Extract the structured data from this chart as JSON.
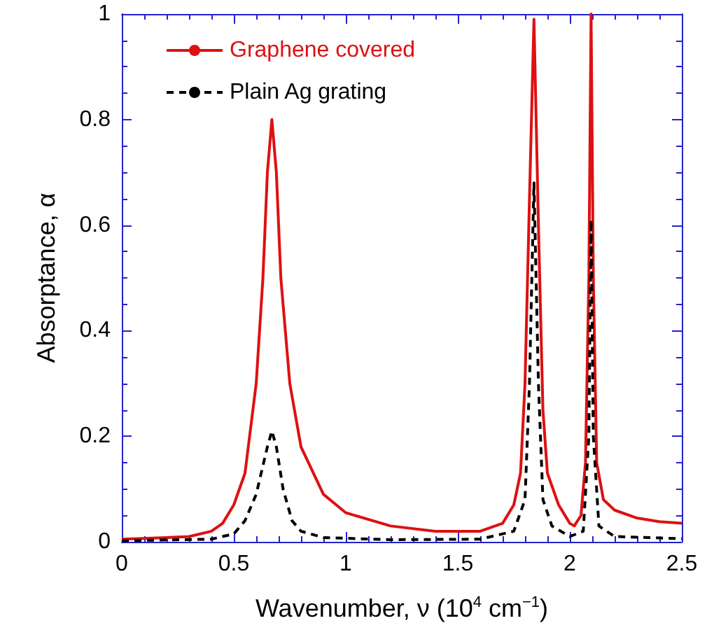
{
  "chart_data": {
    "type": "line",
    "xlabel": "Wavenumber, ν (10$^{4}$ cm$^{−1}$)",
    "ylabel": "Absorptance, α",
    "xlim": [
      0,
      2.5
    ],
    "xticks": [
      0,
      0.5,
      1,
      1.5,
      2,
      2.5
    ],
    "ylim": [
      0,
      1
    ],
    "yticks": [
      0,
      0.2,
      0.4,
      0.6,
      0.8,
      1
    ],
    "grid": false,
    "legend": "top left",
    "marker": "none",
    "series": [
      {
        "name": "Graphene covered",
        "color": "#dd1111",
        "line_style": "solid",
        "x": [
          0,
          0.2,
          0.3,
          0.4,
          0.45,
          0.5,
          0.55,
          0.6,
          0.63,
          0.65,
          0.67,
          0.69,
          0.71,
          0.75,
          0.8,
          0.9,
          1.0,
          1.2,
          1.4,
          1.6,
          1.7,
          1.75,
          1.78,
          1.8,
          1.82,
          1.84,
          1.86,
          1.88,
          1.9,
          1.95,
          2.0,
          2.02,
          2.05,
          2.07,
          2.085,
          2.095,
          2.105,
          2.12,
          2.15,
          2.2,
          2.3,
          2.4,
          2.5
        ],
        "values": [
          0.005,
          0.008,
          0.01,
          0.02,
          0.035,
          0.07,
          0.13,
          0.3,
          0.5,
          0.7,
          0.8,
          0.7,
          0.5,
          0.3,
          0.18,
          0.09,
          0.055,
          0.03,
          0.02,
          0.02,
          0.035,
          0.07,
          0.13,
          0.3,
          0.65,
          0.99,
          0.6,
          0.25,
          0.13,
          0.07,
          0.035,
          0.03,
          0.05,
          0.15,
          0.5,
          1.0,
          0.5,
          0.15,
          0.08,
          0.06,
          0.045,
          0.038,
          0.035
        ]
      },
      {
        "name": "Plain Ag grating",
        "color": "#000000",
        "line_style": "dashed",
        "x": [
          0,
          0.4,
          0.5,
          0.55,
          0.6,
          0.65,
          0.67,
          0.69,
          0.72,
          0.76,
          0.8,
          0.9,
          1.2,
          1.6,
          1.75,
          1.8,
          1.82,
          1.84,
          1.86,
          1.88,
          1.92,
          2.0,
          2.06,
          2.085,
          2.095,
          2.105,
          2.13,
          2.2,
          2.5
        ],
        "values": [
          0.002,
          0.005,
          0.015,
          0.04,
          0.09,
          0.18,
          0.21,
          0.18,
          0.1,
          0.04,
          0.02,
          0.008,
          0.004,
          0.005,
          0.02,
          0.08,
          0.3,
          0.68,
          0.3,
          0.08,
          0.03,
          0.01,
          0.02,
          0.2,
          0.61,
          0.2,
          0.03,
          0.01,
          0.006
        ]
      }
    ]
  }
}
